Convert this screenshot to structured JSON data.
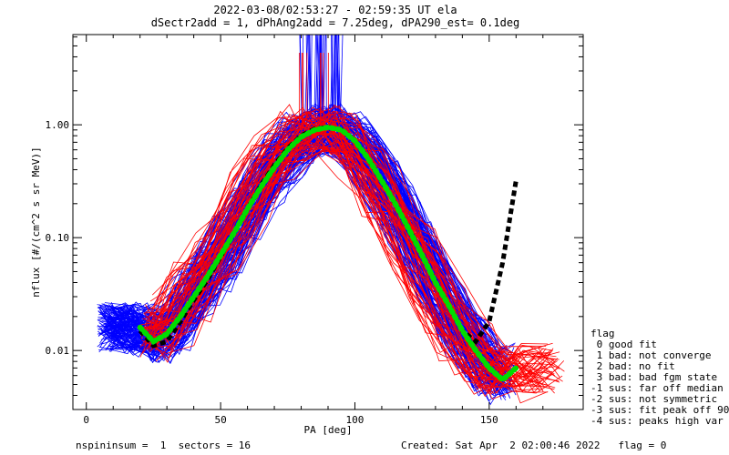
{
  "header": {
    "line1": "2022-03-08/02:53:27 - 02:59:35 UT ela",
    "line2": "dSectr2add = 1, dPhAng2add = 7.25deg, dPA290_est=    0.1deg"
  },
  "footer": {
    "left": "nspininsum =  1  sectors = 16",
    "right": "Created: Sat Apr  2 02:00:46 2022   flag = 0"
  },
  "legend": {
    "title": "flag",
    "items": [
      " 0 good fit",
      " 1 bad: not converge",
      " 2 bad: no fit",
      " 3 bad: bad fgm state",
      "-1 sus: far off median",
      "-2 sus: not symmetric",
      "-3 sus: fit peak off 90",
      "-4 sus: peaks high var"
    ]
  },
  "colors": {
    "blue": "#0000ff",
    "red": "#ff0000",
    "green": "#00dd00",
    "black": "#000000"
  },
  "chart_data": {
    "type": "line",
    "xlabel": "PA [deg]",
    "ylabel": "nflux [#/(cm^2 s sr MeV)]",
    "xlim": [
      -5,
      185
    ],
    "ylim": [
      0.003,
      6.3
    ],
    "yscale": "log",
    "xticks": [
      {
        "value": 0,
        "label": "0"
      },
      {
        "value": 50,
        "label": "50"
      },
      {
        "value": 100,
        "label": "100"
      },
      {
        "value": 150,
        "label": "150"
      }
    ],
    "yticks": [
      {
        "value": 0.01,
        "label": "0.01"
      },
      {
        "value": 0.1,
        "label": "0.10"
      },
      {
        "value": 1.0,
        "label": "1.00"
      }
    ],
    "series": [
      {
        "style": "green-dotted",
        "x": [
          20,
          25,
          30,
          35,
          40,
          45,
          50,
          55,
          60,
          65,
          70,
          75,
          80,
          85,
          90,
          95,
          100,
          105,
          110,
          115,
          120,
          125,
          130,
          135,
          140,
          145,
          150,
          155,
          160
        ],
        "y": [
          0.016,
          0.012,
          0.014,
          0.02,
          0.03,
          0.045,
          0.07,
          0.11,
          0.18,
          0.28,
          0.42,
          0.6,
          0.78,
          0.9,
          0.95,
          0.9,
          0.72,
          0.5,
          0.32,
          0.2,
          0.12,
          0.07,
          0.04,
          0.025,
          0.015,
          0.01,
          0.007,
          0.0055,
          0.007
        ]
      },
      {
        "style": "black-dashed",
        "x": [
          20,
          25,
          30,
          35,
          40,
          45,
          50,
          55,
          60,
          65,
          70,
          75,
          80,
          85,
          90,
          95,
          100,
          105,
          110,
          115,
          120,
          125,
          130,
          135,
          140,
          145,
          150,
          155,
          160
        ],
        "y": [
          0.015,
          0.011,
          0.012,
          0.018,
          0.028,
          0.042,
          0.068,
          0.11,
          0.18,
          0.29,
          0.44,
          0.62,
          0.8,
          0.92,
          0.95,
          0.9,
          0.72,
          0.5,
          0.32,
          0.2,
          0.12,
          0.07,
          0.04,
          0.025,
          0.015,
          0.012,
          0.018,
          0.06,
          0.32
        ]
      }
    ]
  }
}
